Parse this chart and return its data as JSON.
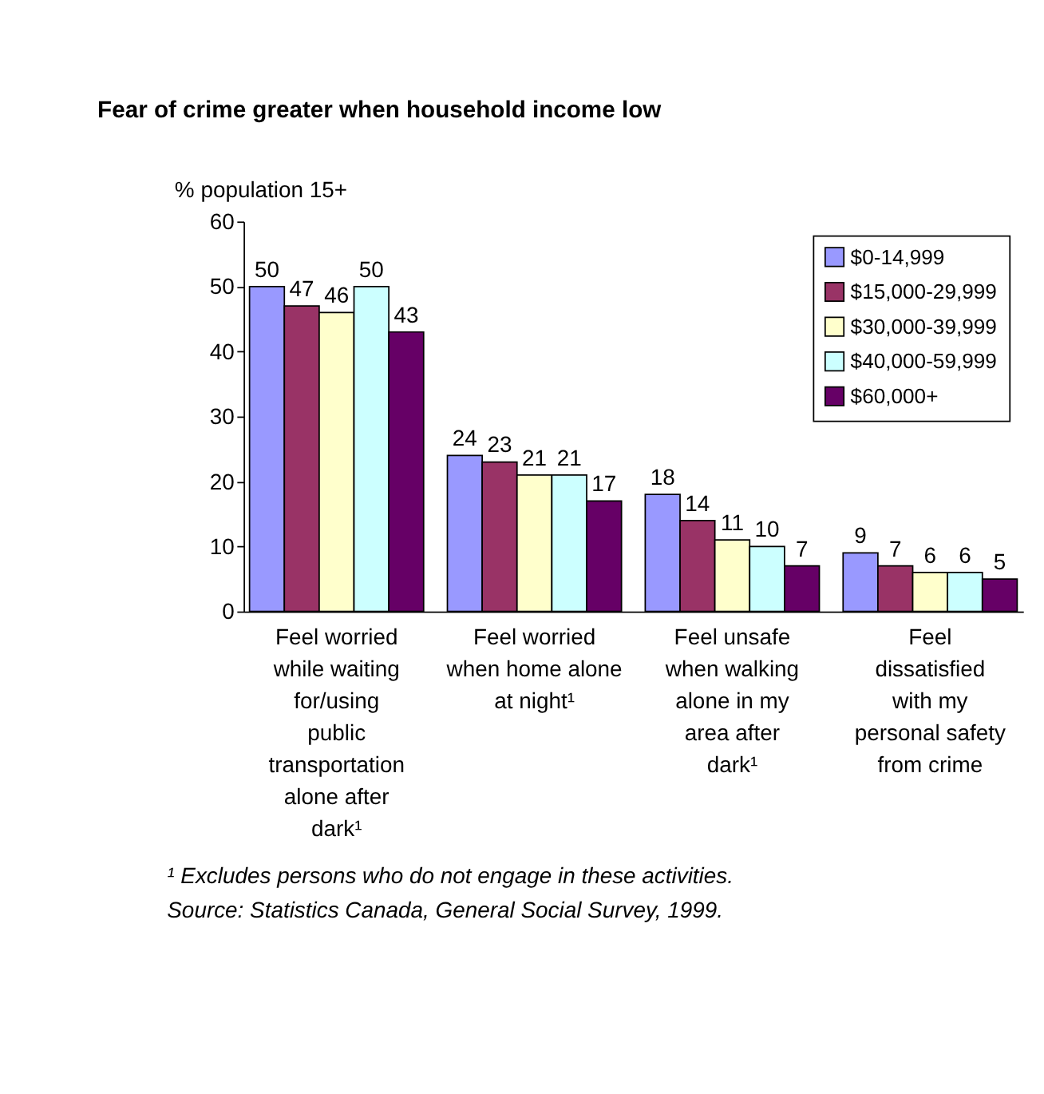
{
  "chart_data": {
    "type": "bar",
    "title": "Fear of crime greater when household income low",
    "ylabel": "% population 15+",
    "categories": [
      "Feel worried while waiting for/using public transportation alone after dark¹",
      "Feel worried when home alone at night¹",
      "Feel unsafe when walking alone in my area after dark¹",
      "Feel dissatisfied with my personal safety from crime"
    ],
    "series": [
      {
        "name": "$0-14,999",
        "color": "#9999ff",
        "values": [
          50,
          24,
          18,
          9
        ]
      },
      {
        "name": "$15,000-29,999",
        "color": "#993366",
        "values": [
          47,
          23,
          14,
          7
        ]
      },
      {
        "name": "$30,000-39,999",
        "color": "#ffffcc",
        "values": [
          46,
          21,
          11,
          6
        ]
      },
      {
        "name": "$40,000-59,999",
        "color": "#ccffff",
        "values": [
          50,
          21,
          10,
          6
        ]
      },
      {
        "name": "$60,000+",
        "color": "#660066",
        "values": [
          43,
          17,
          7,
          5
        ]
      }
    ],
    "ylim": [
      0,
      60
    ],
    "yticks": [
      0,
      10,
      20,
      30,
      40,
      50,
      60
    ],
    "grid": false,
    "legend": "top right",
    "data_labels": true,
    "annotations": [
      "¹ Excludes persons who do not engage in these activities.",
      "Source:  Statistics Canada, General Social Survey, 1999."
    ]
  }
}
